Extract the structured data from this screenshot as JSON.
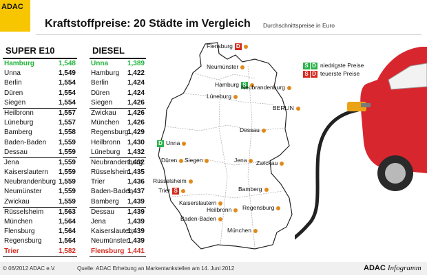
{
  "brand": {
    "logo_text": "ADAC"
  },
  "header": {
    "title": "Kraftstoffpreise: 20 Städte im Vergleich",
    "subtitle": "Durchschnittspreise in Euro"
  },
  "colors": {
    "best": "#1fb33a",
    "worst": "#d52b1e",
    "brand_yellow": "#f7c600",
    "city_dot": "#e08a1a",
    "car": "#d8262e"
  },
  "chart_data": {
    "type": "table",
    "title": "Kraftstoffpreise: 20 Städte im Vergleich",
    "subtitle": "Durchschnittspreise in Euro",
    "columns": [
      {
        "name": "SUPER E10",
        "groups": [
          [
            {
              "city": "Hamburg",
              "price": "1,548",
              "mark": "best"
            },
            {
              "city": "Unna",
              "price": "1,549"
            },
            {
              "city": "Berlin",
              "price": "1,554"
            },
            {
              "city": "Düren",
              "price": "1,554"
            },
            {
              "city": "Siegen",
              "price": "1,554"
            }
          ],
          [
            {
              "city": "Heilbronn",
              "price": "1,557"
            },
            {
              "city": "Lüneburg",
              "price": "1,557"
            },
            {
              "city": "Bamberg",
              "price": "1,558"
            },
            {
              "city": "Baden-Baden",
              "price": "1,559"
            },
            {
              "city": "Dessau",
              "price": "1,559"
            }
          ],
          [
            {
              "city": "Jena",
              "price": "1,559"
            },
            {
              "city": "Kaiserslautern",
              "price": "1,559"
            },
            {
              "city": "Neubrandenburg",
              "price": "1,559"
            },
            {
              "city": "Neumünster",
              "price": "1,559"
            },
            {
              "city": "Zwickau",
              "price": "1,559"
            }
          ],
          [
            {
              "city": "Rüsselsheim",
              "price": "1,563"
            },
            {
              "city": "München",
              "price": "1,564"
            },
            {
              "city": "Flensburg",
              "price": "1,564"
            },
            {
              "city": "Regensburg",
              "price": "1,564"
            },
            {
              "city": "Trier",
              "price": "1,582",
              "mark": "worst"
            }
          ]
        ]
      },
      {
        "name": "DIESEL",
        "groups": [
          [
            {
              "city": "Unna",
              "price": "1,389",
              "mark": "best"
            },
            {
              "city": "Hamburg",
              "price": "1,422"
            },
            {
              "city": "Berlin",
              "price": "1,424"
            },
            {
              "city": "Düren",
              "price": "1,424"
            },
            {
              "city": "Siegen",
              "price": "1,426"
            }
          ],
          [
            {
              "city": "Zwickau",
              "price": "1,426"
            },
            {
              "city": "München",
              "price": "1,426"
            },
            {
              "city": "Regensburg",
              "price": "1,429"
            },
            {
              "city": "Heilbronn",
              "price": "1,430"
            },
            {
              "city": "Lüneburg",
              "price": "1,432"
            }
          ],
          [
            {
              "city": "Neubrandenburg",
              "price": "1,432"
            },
            {
              "city": "Rüsselsheim",
              "price": "1,435"
            },
            {
              "city": "Trier",
              "price": "1,436"
            },
            {
              "city": "Baden-Baden",
              "price": "1,437"
            },
            {
              "city": "Bamberg",
              "price": "1,439"
            }
          ],
          [
            {
              "city": "Dessau",
              "price": "1,439"
            },
            {
              "city": "Jena",
              "price": "1,439"
            },
            {
              "city": "Kaiserslautern",
              "price": "1,439"
            },
            {
              "city": "Neumünster",
              "price": "1,439"
            },
            {
              "city": "Flensburg",
              "price": "1,441",
              "mark": "worst"
            }
          ]
        ]
      }
    ]
  },
  "map": {
    "cities": [
      {
        "name": "Flensburg",
        "badge": "D",
        "badge_color": "r"
      },
      {
        "name": "Neumünster"
      },
      {
        "name": "Hamburg",
        "badge": "S",
        "badge_color": "g"
      },
      {
        "name": "Neubrandenburg"
      },
      {
        "name": "Lüneburg"
      },
      {
        "name": "BERLIN"
      },
      {
        "name": "Dessau"
      },
      {
        "name": "Unna",
        "badge": "D",
        "badge_color": "g",
        "badge_first": true
      },
      {
        "name": "Düren"
      },
      {
        "name": "Siegen"
      },
      {
        "name": "Jena"
      },
      {
        "name": "Zwickau"
      },
      {
        "name": "Rüsselsheim"
      },
      {
        "name": "Trier",
        "badge": "S",
        "badge_color": "r"
      },
      {
        "name": "Bamberg"
      },
      {
        "name": "Kaiserslautern"
      },
      {
        "name": "Heilbronn"
      },
      {
        "name": "Regensburg"
      },
      {
        "name": "Baden-Baden"
      },
      {
        "name": "München"
      }
    ],
    "legend": [
      {
        "badges": [
          "S",
          "D"
        ],
        "color": "g",
        "label": "niedrigste Preise"
      },
      {
        "badges": [
          "S",
          "D"
        ],
        "color": "r",
        "label": "teuerste Preise"
      }
    ]
  },
  "footer": {
    "copyright": "© 06/2012 ADAC e.V.",
    "source": "Quelle: ADAC Erhebung an Markentankstellen am 14. Juni 2012",
    "brand_bold": "ADAC",
    "brand_italic": "Infogramm"
  }
}
